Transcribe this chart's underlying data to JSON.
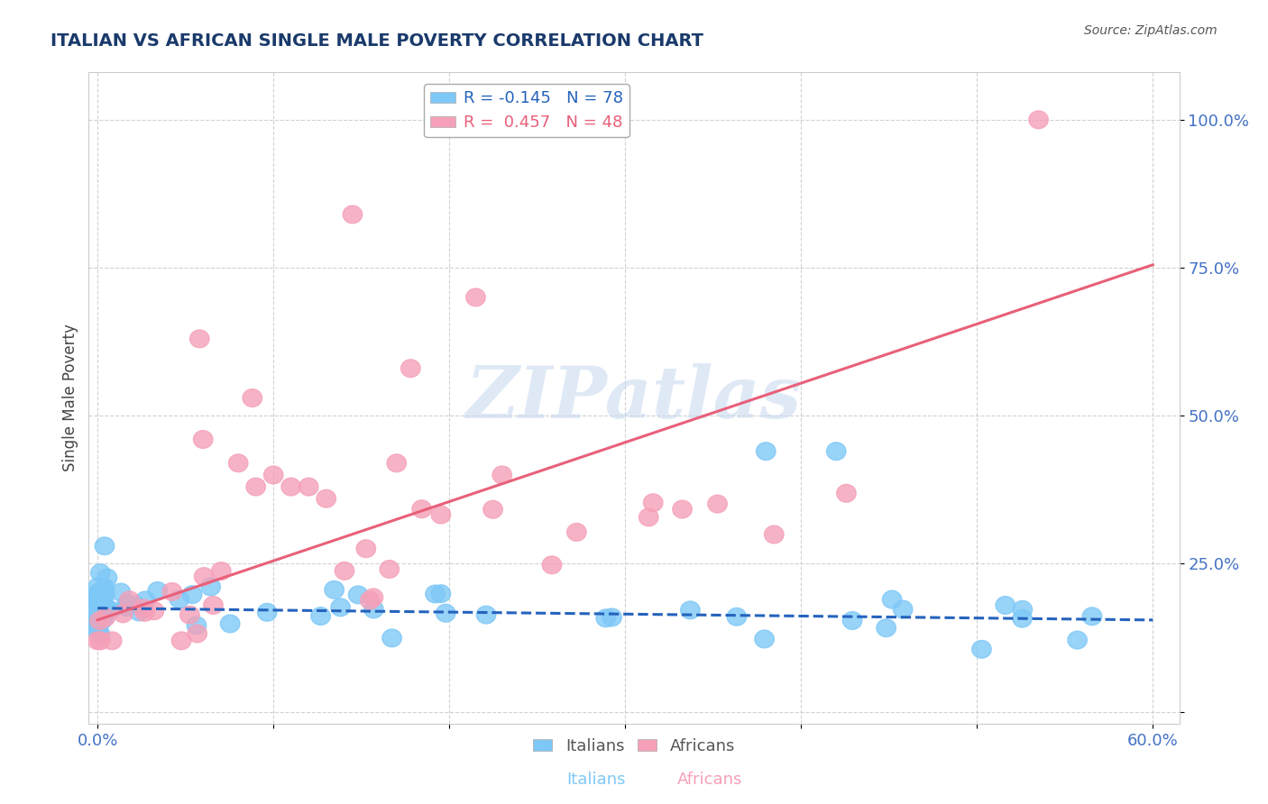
{
  "title": "ITALIAN VS AFRICAN SINGLE MALE POVERTY CORRELATION CHART",
  "source": "Source: ZipAtlas.com",
  "xlabel_italians": "Italians",
  "xlabel_africans": "Africans",
  "ylabel": "Single Male Poverty",
  "xlim": [
    -0.005,
    0.615
  ],
  "ylim": [
    -0.02,
    1.08
  ],
  "xtick_positions": [
    0.0,
    0.1,
    0.2,
    0.3,
    0.4,
    0.5,
    0.6
  ],
  "xticklabels": [
    "0.0%",
    "",
    "",
    "",
    "",
    "",
    "60.0%"
  ],
  "ytick_positions": [
    0.0,
    0.25,
    0.5,
    0.75,
    1.0
  ],
  "yticklabels": [
    "",
    "25.0%",
    "50.0%",
    "75.0%",
    "100.0%"
  ],
  "italian_color": "#7ec8f7",
  "african_color": "#f5a0b8",
  "trend_italian_color": "#2563bd",
  "trend_african_color": "#e8607a",
  "italian_R": -0.145,
  "italian_N": 78,
  "african_R": 0.457,
  "african_N": 48,
  "watermark": "ZIPatlas",
  "watermark_color": "#c5d8ef",
  "title_color": "#1a3a6b",
  "ytick_color": "#4472c4",
  "xtick_color": "#4472c4",
  "trend_it_x0": 0.0,
  "trend_it_x1": 0.6,
  "trend_it_y0": 0.175,
  "trend_it_y1": 0.155,
  "trend_af_x0": 0.0,
  "trend_af_x1": 0.6,
  "trend_af_y0": 0.155,
  "trend_af_y1": 0.755
}
